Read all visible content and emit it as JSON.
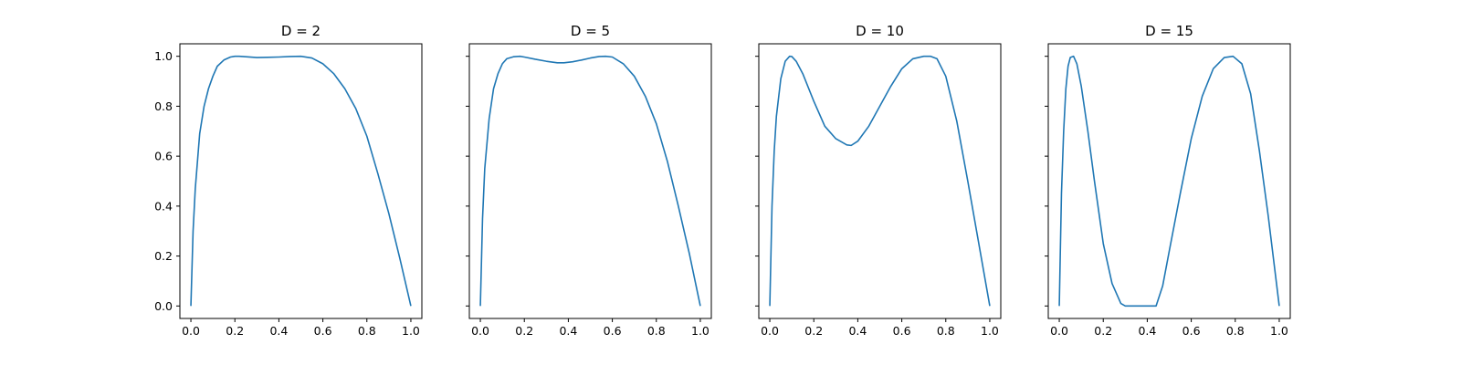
{
  "chart_data": [
    {
      "type": "line",
      "title": "D = 2",
      "xlabel": "",
      "ylabel": "",
      "xlim": [
        -0.05,
        1.05
      ],
      "ylim": [
        -0.05,
        1.05
      ],
      "x_ticks": [
        "0.0",
        "0.2",
        "0.4",
        "0.6",
        "0.8",
        "1.0"
      ],
      "y_ticks": [
        "0.0",
        "0.2",
        "0.4",
        "0.6",
        "0.8",
        "1.0"
      ],
      "show_y_tick_labels": true,
      "grid": false,
      "series": [
        {
          "color": "#1f77b4",
          "x": [
            0.0,
            0.01,
            0.02,
            0.04,
            0.06,
            0.08,
            0.1,
            0.12,
            0.15,
            0.18,
            0.2,
            0.22,
            0.25,
            0.3,
            0.35,
            0.4,
            0.45,
            0.5,
            0.55,
            0.6,
            0.65,
            0.7,
            0.75,
            0.8,
            0.85,
            0.9,
            0.95,
            1.0
          ],
          "y": [
            0.0,
            0.3,
            0.47,
            0.69,
            0.8,
            0.87,
            0.92,
            0.96,
            0.985,
            0.997,
            1.0,
            1.0,
            0.998,
            0.995,
            0.996,
            0.997,
            0.999,
            1.0,
            0.993,
            0.97,
            0.93,
            0.87,
            0.79,
            0.68,
            0.53,
            0.37,
            0.19,
            0.0
          ]
        }
      ]
    },
    {
      "type": "line",
      "title": "D = 5",
      "xlabel": "",
      "ylabel": "",
      "xlim": [
        -0.05,
        1.05
      ],
      "ylim": [
        -0.05,
        1.05
      ],
      "x_ticks": [
        "0.0",
        "0.2",
        "0.4",
        "0.6",
        "0.8",
        "1.0"
      ],
      "y_ticks": [
        "0.0",
        "0.2",
        "0.4",
        "0.6",
        "0.8",
        "1.0"
      ],
      "show_y_tick_labels": false,
      "grid": false,
      "series": [
        {
          "color": "#1f77b4",
          "x": [
            0.0,
            0.01,
            0.02,
            0.04,
            0.06,
            0.08,
            0.1,
            0.12,
            0.15,
            0.18,
            0.2,
            0.25,
            0.3,
            0.35,
            0.38,
            0.42,
            0.46,
            0.5,
            0.54,
            0.57,
            0.6,
            0.65,
            0.7,
            0.75,
            0.8,
            0.85,
            0.9,
            0.95,
            1.0
          ],
          "y": [
            0.0,
            0.35,
            0.55,
            0.75,
            0.87,
            0.93,
            0.97,
            0.99,
            0.998,
            1.0,
            0.997,
            0.988,
            0.98,
            0.974,
            0.974,
            0.978,
            0.985,
            0.993,
            0.999,
            1.0,
            0.997,
            0.97,
            0.92,
            0.84,
            0.73,
            0.58,
            0.4,
            0.21,
            0.0
          ]
        }
      ]
    },
    {
      "type": "line",
      "title": "D = 10",
      "xlabel": "",
      "ylabel": "",
      "xlim": [
        -0.05,
        1.05
      ],
      "ylim": [
        -0.05,
        1.05
      ],
      "x_ticks": [
        "0.0",
        "0.2",
        "0.4",
        "0.6",
        "0.8",
        "1.0"
      ],
      "y_ticks": [
        "0.0",
        "0.2",
        "0.4",
        "0.6",
        "0.8",
        "1.0"
      ],
      "show_y_tick_labels": false,
      "grid": false,
      "series": [
        {
          "color": "#1f77b4",
          "x": [
            0.0,
            0.01,
            0.02,
            0.03,
            0.05,
            0.07,
            0.09,
            0.1,
            0.12,
            0.15,
            0.2,
            0.25,
            0.3,
            0.35,
            0.37,
            0.4,
            0.45,
            0.5,
            0.55,
            0.6,
            0.65,
            0.7,
            0.73,
            0.76,
            0.8,
            0.85,
            0.9,
            0.95,
            1.0
          ],
          "y": [
            0.0,
            0.4,
            0.62,
            0.76,
            0.91,
            0.98,
            1.0,
            0.999,
            0.98,
            0.93,
            0.82,
            0.72,
            0.67,
            0.645,
            0.643,
            0.66,
            0.72,
            0.8,
            0.88,
            0.95,
            0.99,
            1.0,
            1.0,
            0.99,
            0.92,
            0.74,
            0.5,
            0.25,
            0.0
          ]
        }
      ]
    },
    {
      "type": "line",
      "title": "D = 15",
      "xlabel": "",
      "ylabel": "",
      "xlim": [
        -0.05,
        1.05
      ],
      "ylim": [
        -0.05,
        1.05
      ],
      "x_ticks": [
        "0.0",
        "0.2",
        "0.4",
        "0.6",
        "0.8",
        "1.0"
      ],
      "y_ticks": [
        "0.0",
        "0.2",
        "0.4",
        "0.6",
        "0.8",
        "1.0"
      ],
      "show_y_tick_labels": false,
      "grid": false,
      "series": [
        {
          "color": "#1f77b4",
          "x": [
            0.0,
            0.01,
            0.02,
            0.03,
            0.04,
            0.05,
            0.065,
            0.08,
            0.1,
            0.13,
            0.16,
            0.2,
            0.24,
            0.28,
            0.3,
            0.35,
            0.4,
            0.44,
            0.47,
            0.5,
            0.55,
            0.6,
            0.65,
            0.7,
            0.75,
            0.79,
            0.83,
            0.87,
            0.91,
            0.95,
            1.0
          ],
          "y": [
            0.0,
            0.45,
            0.7,
            0.87,
            0.96,
            0.995,
            1.0,
            0.97,
            0.88,
            0.7,
            0.5,
            0.25,
            0.09,
            0.01,
            0.0,
            0.0,
            0.0,
            0.0,
            0.08,
            0.22,
            0.45,
            0.67,
            0.84,
            0.95,
            0.995,
            1.0,
            0.97,
            0.85,
            0.62,
            0.36,
            0.0
          ]
        }
      ]
    }
  ]
}
